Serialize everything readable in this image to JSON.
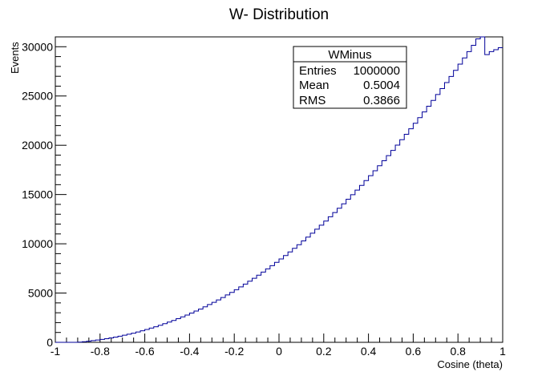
{
  "chart_data": {
    "type": "bar",
    "title": "W- Distribution",
    "xlabel": "Cosine (theta)",
    "ylabel": "Events",
    "xlim": [
      -1,
      1
    ],
    "ylim": [
      0,
      31000
    ],
    "x_tick_labels": [
      "-1",
      "-0.8",
      "-0.6",
      "-0.4",
      "-0.2",
      "0",
      "0.2",
      "0.4",
      "0.6",
      "0.8",
      "1"
    ],
    "y_tick_labels": [
      "0",
      "5000",
      "10000",
      "15000",
      "20000",
      "25000",
      "30000"
    ],
    "series": [
      {
        "bin_width": 0.02,
        "line_color": "#000099",
        "bin_low_edges": [
          -1.0,
          -0.98,
          -0.96,
          -0.94,
          -0.92,
          -0.9,
          -0.88,
          -0.86,
          -0.84,
          -0.82,
          -0.8,
          -0.78,
          -0.76,
          -0.74,
          -0.72,
          -0.7,
          -0.68,
          -0.66,
          -0.64,
          -0.62,
          -0.6,
          -0.58,
          -0.56,
          -0.54,
          -0.52,
          -0.5,
          -0.48,
          -0.46,
          -0.44,
          -0.42,
          -0.4,
          -0.38,
          -0.36,
          -0.34,
          -0.32,
          -0.3,
          -0.28,
          -0.26,
          -0.24,
          -0.22,
          -0.2,
          -0.18,
          -0.16,
          -0.14,
          -0.12,
          -0.1,
          -0.08,
          -0.06,
          -0.04,
          -0.02,
          0.0,
          0.02,
          0.04,
          0.06,
          0.08,
          0.1,
          0.12,
          0.14,
          0.16,
          0.18,
          0.2,
          0.22,
          0.24,
          0.26,
          0.28,
          0.3,
          0.32,
          0.34,
          0.36,
          0.38,
          0.4,
          0.42,
          0.44,
          0.46,
          0.48,
          0.5,
          0.52,
          0.54,
          0.56,
          0.58,
          0.6,
          0.62,
          0.64,
          0.66,
          0.68,
          0.7,
          0.72,
          0.74,
          0.76,
          0.78,
          0.8,
          0.82,
          0.84,
          0.86,
          0.88,
          0.9,
          0.92,
          0.94,
          0.96,
          0.98
        ],
        "values": [
          0,
          0,
          0,
          0,
          0,
          25,
          60,
          110,
          170,
          230,
          300,
          370,
          450,
          530,
          620,
          720,
          820,
          930,
          1050,
          1170,
          1300,
          1440,
          1580,
          1730,
          1890,
          2050,
          2220,
          2400,
          2580,
          2770,
          2970,
          3170,
          3380,
          3600,
          3830,
          4060,
          4300,
          4550,
          4810,
          5070,
          5340,
          5620,
          5910,
          6200,
          6500,
          6810,
          7130,
          7450,
          7780,
          8120,
          8460,
          8810,
          9170,
          9540,
          9910,
          10290,
          10680,
          11080,
          11480,
          11890,
          12310,
          12740,
          13170,
          13610,
          14060,
          14520,
          14980,
          15450,
          15930,
          16420,
          16910,
          17410,
          17920,
          18430,
          18950,
          19480,
          20020,
          20560,
          21110,
          21670,
          22230,
          22800,
          23380,
          23960,
          24550,
          25150,
          25750,
          26360,
          26980,
          27600,
          28230,
          28860,
          29500,
          30150,
          30800,
          31400,
          29200,
          29500,
          29700,
          29900
        ]
      }
    ],
    "grid": false,
    "legend": "none"
  },
  "stats_box": {
    "title": "WMinus",
    "rows": [
      {
        "label": "Entries",
        "value": "1000000"
      },
      {
        "label": "Mean",
        "value": "0.5004"
      },
      {
        "label": "RMS",
        "value": "0.3866"
      }
    ]
  }
}
